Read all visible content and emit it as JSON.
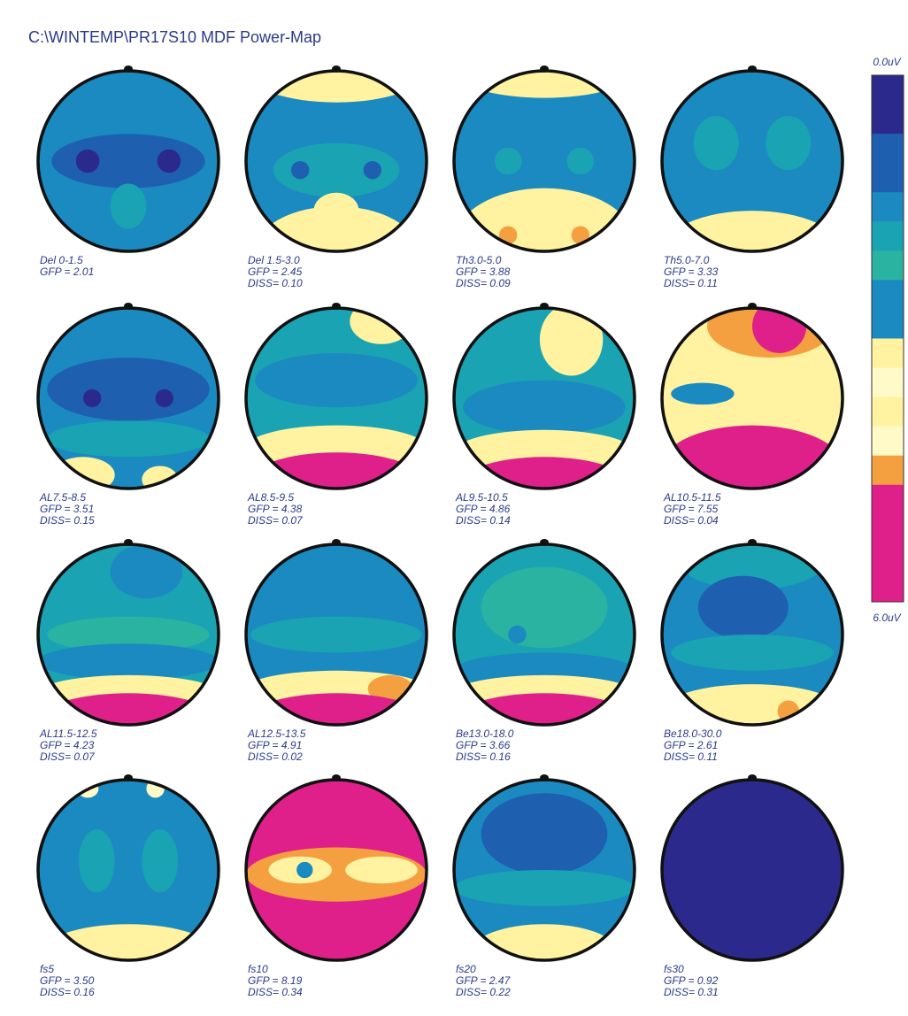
{
  "title": "C:\\WINTEMP\\PR17S10 MDF Power-Map",
  "colorbar": {
    "top_label": "0.0uV",
    "bottom_label": "6.0uV"
  },
  "maps": [
    {
      "label": "Del 0-1.5",
      "gfp": "GFP =   2.01"
    },
    {
      "label": "Del 1.5-3.0",
      "gfp": "GFP =   2.45",
      "diss": "DISS=  0.10"
    },
    {
      "label": "Th3.0-5.0",
      "gfp": "GFP =   3.88",
      "diss": "DISS=  0.09"
    },
    {
      "label": "Th5.0-7.0",
      "gfp": "GFP =   3.33",
      "diss": "DISS=  0.11"
    },
    {
      "label": "AL7.5-8.5",
      "gfp": "GFP =   3.51",
      "diss": "DISS=  0.15"
    },
    {
      "label": "AL8.5-9.5",
      "gfp": "GFP =   4.38",
      "diss": "DISS=  0.07"
    },
    {
      "label": "AL9.5-10.5",
      "gfp": "GFP =   4.86",
      "diss": "DISS=  0.14"
    },
    {
      "label": "AL10.5-11.5",
      "gfp": "GFP =   7.55",
      "diss": "DISS=  0.04"
    },
    {
      "label": "AL11.5-12.5",
      "gfp": "GFP =   4.23",
      "diss": "DISS=  0.07"
    },
    {
      "label": "AL12.5-13.5",
      "gfp": "GFP =   4.91",
      "diss": "DISS=  0.02"
    },
    {
      "label": "Be13.0-18.0",
      "gfp": "GFP =   3.66",
      "diss": "DISS=  0.16"
    },
    {
      "label": "Be18.0-30.0",
      "gfp": "GFP =   2.61",
      "diss": "DISS=  0.11"
    },
    {
      "label": "fs5",
      "gfp": "GFP =   3.50",
      "diss": "DISS=  0.16"
    },
    {
      "label": "fs10",
      "gfp": "GFP =   8.19",
      "diss": "DISS=  0.34"
    },
    {
      "label": "fs20",
      "gfp": "GFP =   2.47",
      "diss": "DISS=  0.22"
    },
    {
      "label": "fs30",
      "gfp": "GFP =   0.92",
      "diss": "DISS=  0.31"
    }
  ]
}
